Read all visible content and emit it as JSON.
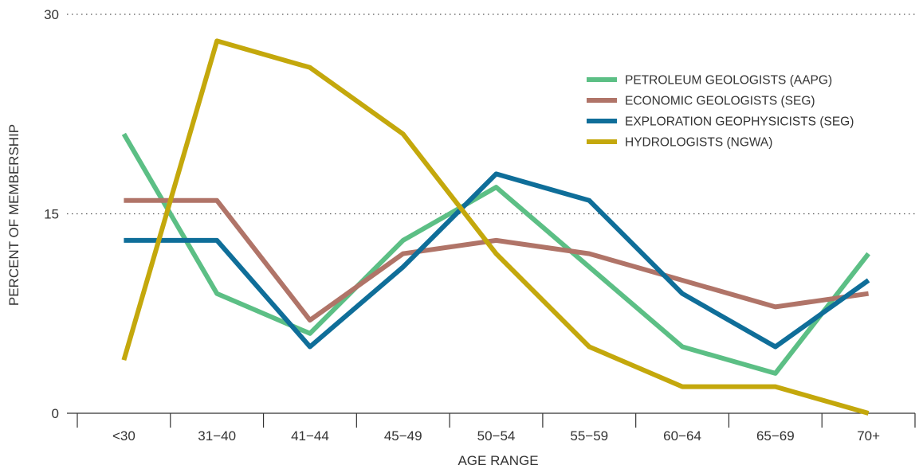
{
  "chart_data": {
    "type": "line",
    "xlabel": "AGE RANGE",
    "ylabel": "PERCENT OF MEMBERSHIP",
    "ylim": [
      0,
      30
    ],
    "yticks": [
      "0",
      "15",
      "30"
    ],
    "grid": "dotted horizontal at 15 and 30",
    "legend_position": "top-right",
    "categories": [
      "<30",
      "31−40",
      "41−44",
      "45−49",
      "50−54",
      "55−59",
      "60−64",
      "65−69",
      "70+"
    ],
    "series": [
      {
        "name": "PETROLEUM GEOLOGISTS (AAPG)",
        "color": "#5cbf85",
        "values": [
          21,
          9,
          6,
          13,
          17,
          11,
          5,
          3,
          12
        ]
      },
      {
        "name": "ECONOMIC GEOLOGISTS (SEG)",
        "color": "#b07468",
        "values": [
          16,
          16,
          7,
          12,
          13,
          12,
          10,
          8,
          9
        ]
      },
      {
        "name": "EXPLORATION GEOPHYSICISTS (SEG)",
        "color": "#0f6e99",
        "values": [
          13,
          13,
          5,
          11,
          18,
          16,
          9,
          5,
          10
        ]
      },
      {
        "name": "HYDROLOGISTS (NGWA)",
        "color": "#c4a80c",
        "values": [
          4,
          28,
          26,
          21,
          12,
          5,
          2,
          2,
          0
        ]
      }
    ]
  }
}
